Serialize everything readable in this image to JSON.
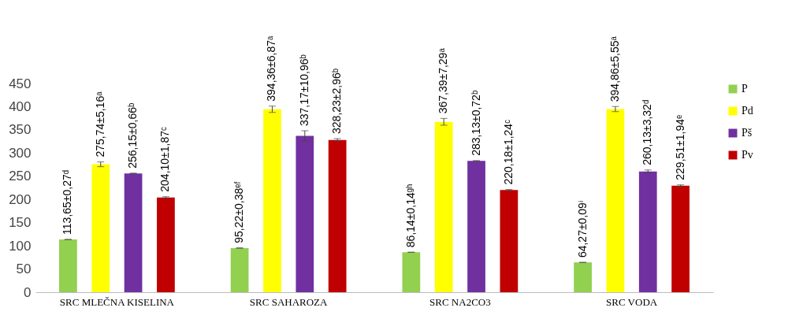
{
  "chart_data": {
    "type": "bar",
    "categories": [
      "SRC MLEČNA KISELINA",
      "SRC SAHAROZA",
      "SRC NA2CO3",
      "SRC VODA"
    ],
    "series": [
      {
        "name": "P",
        "color": "#92d050",
        "values": [
          113.65,
          95.22,
          86.14,
          64.27
        ],
        "errors": [
          0.27,
          0.38,
          0.14,
          0.09
        ],
        "value_labels": [
          "113,65±0,27ᵈ",
          "95,22±0,38ᵉᶠ",
          "86,14±0,14ᵍʰ",
          "64,27±0,09ⁱ"
        ]
      },
      {
        "name": "Pd",
        "color": "#ffff00",
        "values": [
          275.74,
          394.36,
          367.39,
          394.86
        ],
        "errors": [
          5.16,
          6.87,
          7.29,
          5.55
        ],
        "value_labels": [
          "275,74±5,16ᵃ",
          "394,36±6,87ᵃ",
          "367,39±7,29ᵃ",
          "394,86±5,55ᵃ"
        ]
      },
      {
        "name": "Pš",
        "color": "#7030a0",
        "values": [
          256.15,
          337.17,
          283.13,
          260.13
        ],
        "errors": [
          0.66,
          10.96,
          0.72,
          3.32
        ],
        "value_labels": [
          "256,15±0,66ᵇ",
          "337,17±10,96ᵇ",
          "283,13±0,72ᵇ",
          "260,13±3,32ᵈ"
        ]
      },
      {
        "name": "Pv",
        "color": "#c00000",
        "values": [
          204.1,
          328.23,
          220.18,
          229.51
        ],
        "errors": [
          1.87,
          2.96,
          1.24,
          1.94
        ],
        "value_labels": [
          "204,10±1,87ᶜ",
          "328,23±2,96ᵇ",
          "220,18±1,24ᶜ",
          "229,51±1,94ᵉ"
        ]
      }
    ],
    "ylim": [
      0,
      450
    ],
    "yticks": [
      0,
      50,
      100,
      150,
      200,
      250,
      300,
      350,
      400,
      450
    ],
    "grid": false,
    "legend": "right"
  }
}
